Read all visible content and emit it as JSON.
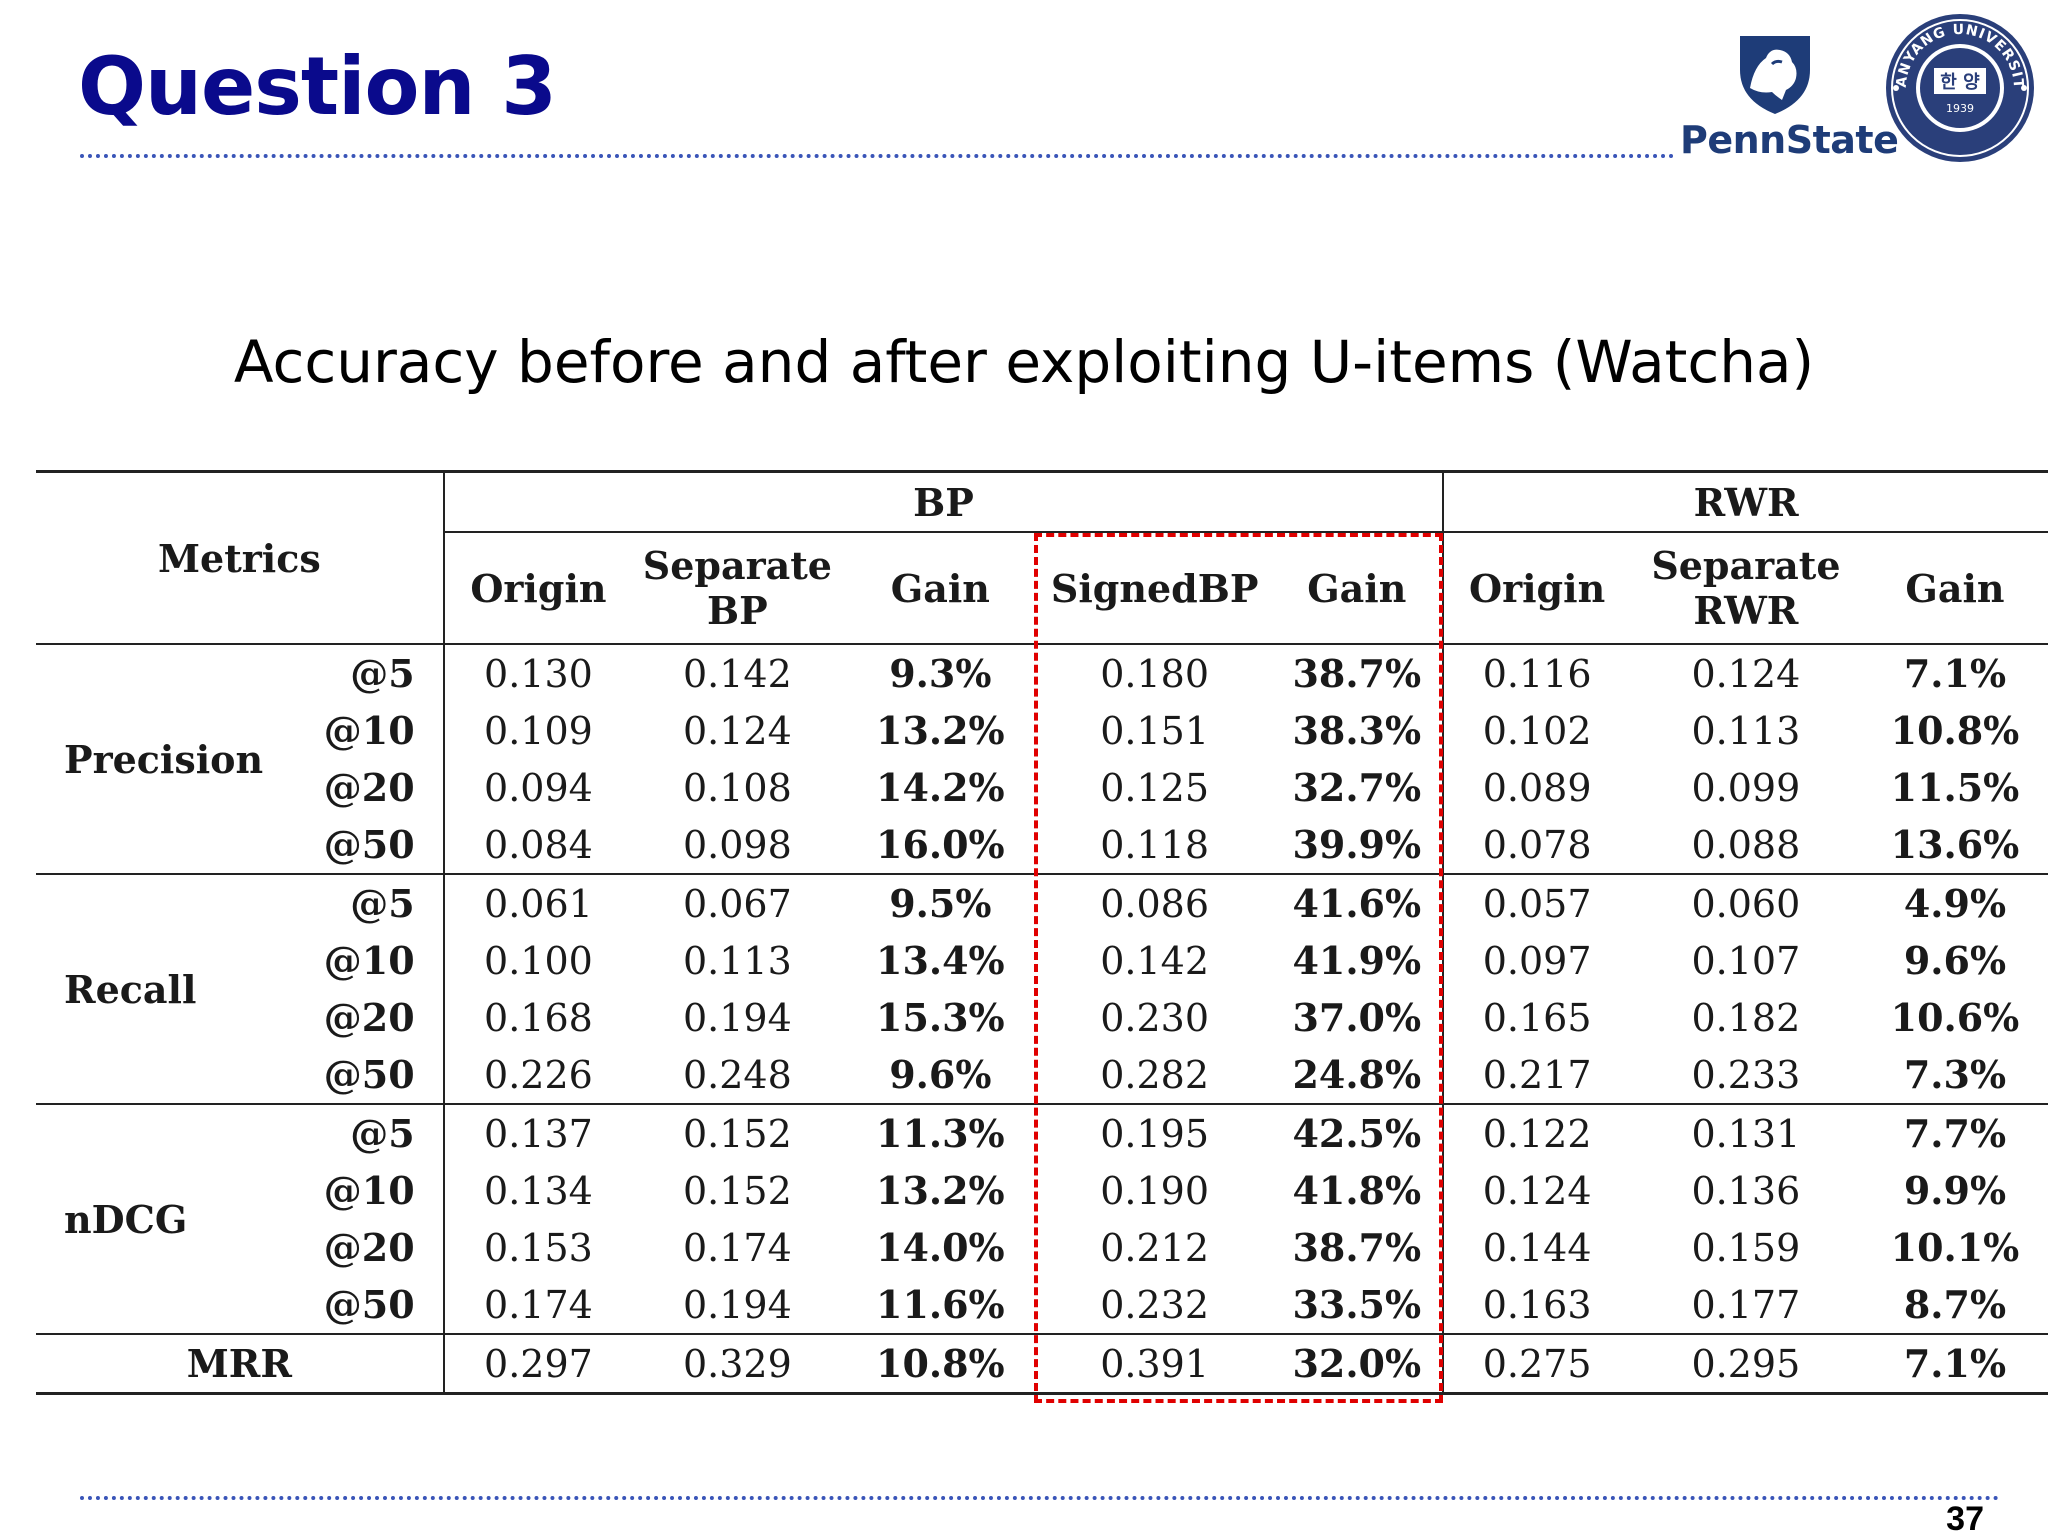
{
  "slide": {
    "title": "Question 3",
    "subtitle": "Accuracy before and after exploiting U-items (Watcha)",
    "page_number": "37"
  },
  "logos": {
    "pennstate": {
      "wordmark": "PennState",
      "icon": "nittany-lion-shield-icon",
      "color": "#1e3c78"
    },
    "hanyang": {
      "ring_text": "HANYANG UNIVERSITY",
      "center_text": "한 양",
      "year": "1939",
      "icon": "university-seal-icon",
      "color": "#2a3f7a"
    }
  },
  "table": {
    "header": {
      "metrics": "Metrics",
      "bp_group": "BP",
      "rwr_group": "RWR",
      "bp_cols": [
        {
          "line1": "Origin",
          "line2": ""
        },
        {
          "line1": "Separate",
          "line2": "BP"
        },
        {
          "line1": "Gain",
          "line2": ""
        },
        {
          "line1": "SignedBP",
          "line2": ""
        },
        {
          "line1": "Gain",
          "line2": ""
        }
      ],
      "rwr_cols": [
        {
          "line1": "Origin",
          "line2": ""
        },
        {
          "line1": "Separate",
          "line2": "RWR"
        },
        {
          "line1": "Gain",
          "line2": ""
        }
      ]
    },
    "groups": [
      {
        "name": "Precision",
        "rows": [
          {
            "k": "@5",
            "v": [
              "0.130",
              "0.142",
              "9.3%",
              "0.180",
              "38.7%",
              "0.116",
              "0.124",
              "7.1%"
            ]
          },
          {
            "k": "@10",
            "v": [
              "0.109",
              "0.124",
              "13.2%",
              "0.151",
              "38.3%",
              "0.102",
              "0.113",
              "10.8%"
            ]
          },
          {
            "k": "@20",
            "v": [
              "0.094",
              "0.108",
              "14.2%",
              "0.125",
              "32.7%",
              "0.089",
              "0.099",
              "11.5%"
            ]
          },
          {
            "k": "@50",
            "v": [
              "0.084",
              "0.098",
              "16.0%",
              "0.118",
              "39.9%",
              "0.078",
              "0.088",
              "13.6%"
            ]
          }
        ]
      },
      {
        "name": "Recall",
        "rows": [
          {
            "k": "@5",
            "v": [
              "0.061",
              "0.067",
              "9.5%",
              "0.086",
              "41.6%",
              "0.057",
              "0.060",
              "4.9%"
            ]
          },
          {
            "k": "@10",
            "v": [
              "0.100",
              "0.113",
              "13.4%",
              "0.142",
              "41.9%",
              "0.097",
              "0.107",
              "9.6%"
            ]
          },
          {
            "k": "@20",
            "v": [
              "0.168",
              "0.194",
              "15.3%",
              "0.230",
              "37.0%",
              "0.165",
              "0.182",
              "10.6%"
            ]
          },
          {
            "k": "@50",
            "v": [
              "0.226",
              "0.248",
              "9.6%",
              "0.282",
              "24.8%",
              "0.217",
              "0.233",
              "7.3%"
            ]
          }
        ]
      },
      {
        "name": "nDCG",
        "rows": [
          {
            "k": "@5",
            "v": [
              "0.137",
              "0.152",
              "11.3%",
              "0.195",
              "42.5%",
              "0.122",
              "0.131",
              "7.7%"
            ]
          },
          {
            "k": "@10",
            "v": [
              "0.134",
              "0.152",
              "13.2%",
              "0.190",
              "41.8%",
              "0.124",
              "0.136",
              "9.9%"
            ]
          },
          {
            "k": "@20",
            "v": [
              "0.153",
              "0.174",
              "14.0%",
              "0.212",
              "38.7%",
              "0.144",
              "0.159",
              "10.1%"
            ]
          },
          {
            "k": "@50",
            "v": [
              "0.174",
              "0.194",
              "11.6%",
              "0.232",
              "33.5%",
              "0.163",
              "0.177",
              "8.7%"
            ]
          }
        ]
      }
    ],
    "mrr": {
      "name": "MRR",
      "v": [
        "0.297",
        "0.329",
        "10.8%",
        "0.391",
        "32.0%",
        "0.275",
        "0.295",
        "7.1%"
      ]
    },
    "highlight": {
      "columns": [
        "SignedBP",
        "Gain"
      ],
      "color": "#e00000",
      "style": "dashed"
    }
  }
}
